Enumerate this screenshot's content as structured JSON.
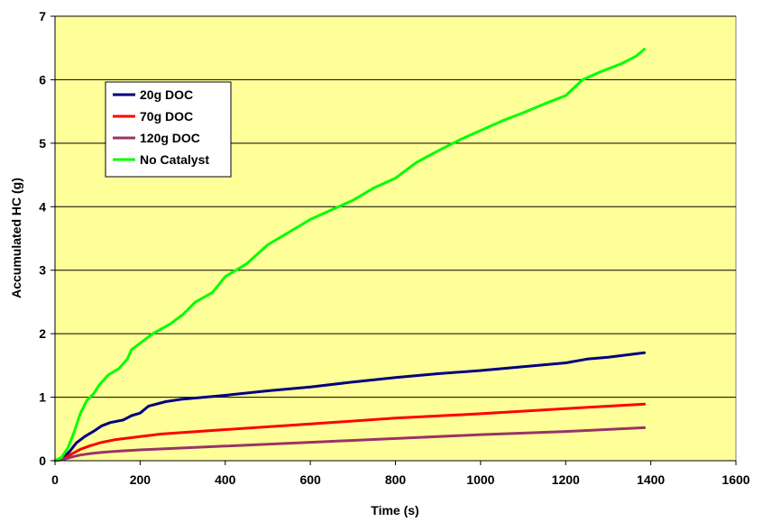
{
  "chart_data": {
    "type": "line",
    "title": "",
    "xlabel": "Time (s)",
    "ylabel": "Accumulated HC (g)",
    "xlim": [
      0,
      1600
    ],
    "ylim": [
      0,
      7
    ],
    "x_ticks": [
      "0",
      "200",
      "400",
      "600",
      "800",
      "1000",
      "1200",
      "1400",
      "1600"
    ],
    "y_ticks": [
      "0",
      "1",
      "2",
      "3",
      "4",
      "5",
      "6",
      "7"
    ],
    "grid": "horizontal major gridlines",
    "plot_background": "#FFFF99",
    "legend_position": "upper-left inside plot",
    "series": [
      {
        "name": "20g DOC",
        "color": "#000080",
        "points": [
          [
            0,
            0
          ],
          [
            20,
            0.05
          ],
          [
            35,
            0.15
          ],
          [
            50,
            0.28
          ],
          [
            70,
            0.38
          ],
          [
            90,
            0.46
          ],
          [
            110,
            0.55
          ],
          [
            130,
            0.6
          ],
          [
            160,
            0.64
          ],
          [
            180,
            0.71
          ],
          [
            200,
            0.75
          ],
          [
            220,
            0.86
          ],
          [
            260,
            0.93
          ],
          [
            300,
            0.97
          ],
          [
            400,
            1.03
          ],
          [
            500,
            1.1
          ],
          [
            600,
            1.16
          ],
          [
            700,
            1.24
          ],
          [
            800,
            1.31
          ],
          [
            900,
            1.37
          ],
          [
            1000,
            1.42
          ],
          [
            1100,
            1.48
          ],
          [
            1200,
            1.54
          ],
          [
            1250,
            1.6
          ],
          [
            1300,
            1.63
          ],
          [
            1385,
            1.7
          ]
        ]
      },
      {
        "name": "70g DOC",
        "color": "#FF0000",
        "points": [
          [
            0,
            0
          ],
          [
            20,
            0.03
          ],
          [
            40,
            0.11
          ],
          [
            60,
            0.18
          ],
          [
            80,
            0.23
          ],
          [
            110,
            0.29
          ],
          [
            140,
            0.33
          ],
          [
            200,
            0.38
          ],
          [
            250,
            0.42
          ],
          [
            400,
            0.49
          ],
          [
            600,
            0.58
          ],
          [
            800,
            0.67
          ],
          [
            1000,
            0.74
          ],
          [
            1200,
            0.82
          ],
          [
            1385,
            0.89
          ]
        ]
      },
      {
        "name": "120g DOC",
        "color": "#993366",
        "points": [
          [
            0,
            0
          ],
          [
            20,
            0.02
          ],
          [
            40,
            0.06
          ],
          [
            60,
            0.09
          ],
          [
            80,
            0.11
          ],
          [
            110,
            0.13
          ],
          [
            150,
            0.15
          ],
          [
            200,
            0.17
          ],
          [
            300,
            0.2
          ],
          [
            400,
            0.23
          ],
          [
            600,
            0.29
          ],
          [
            800,
            0.35
          ],
          [
            1000,
            0.41
          ],
          [
            1200,
            0.46
          ],
          [
            1385,
            0.52
          ]
        ]
      },
      {
        "name": "No Catalyst",
        "color": "#00FF00",
        "points": [
          [
            0,
            0
          ],
          [
            15,
            0.05
          ],
          [
            30,
            0.2
          ],
          [
            45,
            0.45
          ],
          [
            60,
            0.75
          ],
          [
            75,
            0.95
          ],
          [
            90,
            1.05
          ],
          [
            105,
            1.2
          ],
          [
            125,
            1.35
          ],
          [
            150,
            1.45
          ],
          [
            170,
            1.6
          ],
          [
            180,
            1.75
          ],
          [
            200,
            1.85
          ],
          [
            230,
            2.0
          ],
          [
            270,
            2.15
          ],
          [
            300,
            2.3
          ],
          [
            330,
            2.5
          ],
          [
            370,
            2.65
          ],
          [
            400,
            2.9
          ],
          [
            450,
            3.1
          ],
          [
            500,
            3.4
          ],
          [
            550,
            3.6
          ],
          [
            600,
            3.8
          ],
          [
            650,
            3.95
          ],
          [
            700,
            4.1
          ],
          [
            750,
            4.3
          ],
          [
            800,
            4.45
          ],
          [
            850,
            4.7
          ],
          [
            900,
            4.88
          ],
          [
            950,
            5.05
          ],
          [
            1000,
            5.2
          ],
          [
            1050,
            5.35
          ],
          [
            1100,
            5.48
          ],
          [
            1150,
            5.62
          ],
          [
            1200,
            5.75
          ],
          [
            1240,
            6.0
          ],
          [
            1280,
            6.12
          ],
          [
            1330,
            6.25
          ],
          [
            1365,
            6.37
          ],
          [
            1385,
            6.48
          ]
        ]
      }
    ]
  }
}
